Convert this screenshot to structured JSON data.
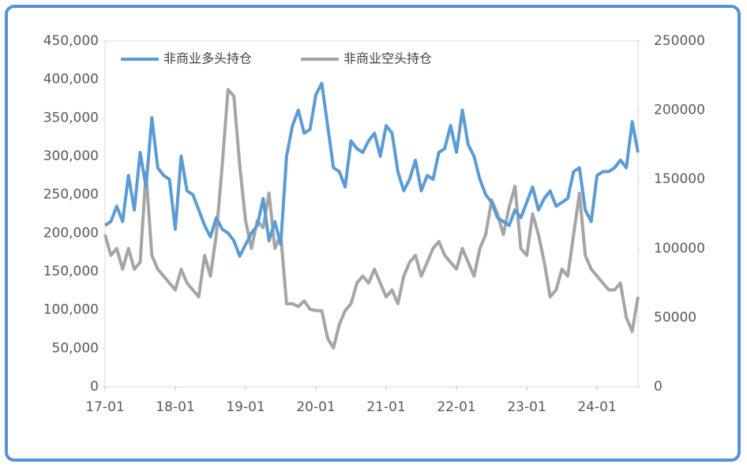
{
  "chart_data": {
    "type": "line",
    "x": [
      "17-01",
      "17-02",
      "17-03",
      "17-04",
      "17-05",
      "17-06",
      "17-07",
      "17-08",
      "17-09",
      "17-10",
      "17-11",
      "17-12",
      "18-01",
      "18-02",
      "18-03",
      "18-04",
      "18-05",
      "18-06",
      "18-07",
      "18-08",
      "18-09",
      "18-10",
      "18-11",
      "18-12",
      "19-01",
      "19-02",
      "19-03",
      "19-04",
      "19-05",
      "19-06",
      "19-07",
      "19-08",
      "19-09",
      "19-10",
      "19-11",
      "19-12",
      "20-01",
      "20-02",
      "20-03",
      "20-04",
      "20-05",
      "20-06",
      "20-07",
      "20-08",
      "20-09",
      "20-10",
      "20-11",
      "20-12",
      "21-01",
      "21-02",
      "21-03",
      "21-04",
      "21-05",
      "21-06",
      "21-07",
      "21-08",
      "21-09",
      "21-10",
      "21-11",
      "21-12",
      "22-01",
      "22-02",
      "22-03",
      "22-04",
      "22-05",
      "22-06",
      "22-07",
      "22-08",
      "22-09",
      "22-10",
      "22-11",
      "22-12",
      "23-01",
      "23-02",
      "23-03",
      "23-04",
      "23-05",
      "23-06",
      "23-07",
      "23-08",
      "23-09",
      "23-10",
      "23-11",
      "23-12",
      "24-01",
      "24-02",
      "24-03",
      "24-04",
      "24-05",
      "24-06",
      "24-07",
      "24-08"
    ],
    "xticks": [
      "17-01",
      "18-01",
      "19-01",
      "20-01",
      "21-01",
      "22-01",
      "23-01",
      "24-01"
    ],
    "series": [
      {
        "name": "非商业多头持仓",
        "color": "#5b9bd5",
        "axis": "y",
        "values": [
          210000,
          215000,
          235000,
          215000,
          275000,
          230000,
          305000,
          260000,
          350000,
          285000,
          275000,
          270000,
          205000,
          300000,
          255000,
          250000,
          230000,
          210000,
          195000,
          220000,
          205000,
          200000,
          190000,
          170000,
          185000,
          200000,
          210000,
          245000,
          190000,
          215000,
          185000,
          300000,
          340000,
          360000,
          330000,
          335000,
          380000,
          395000,
          340000,
          285000,
          280000,
          260000,
          320000,
          310000,
          305000,
          320000,
          330000,
          300000,
          340000,
          330000,
          280000,
          255000,
          270000,
          295000,
          255000,
          275000,
          270000,
          305000,
          310000,
          340000,
          305000,
          360000,
          315000,
          300000,
          270000,
          250000,
          240000,
          220000,
          215000,
          210000,
          230000,
          220000,
          240000,
          260000,
          230000,
          245000,
          255000,
          235000,
          240000,
          245000,
          280000,
          285000,
          230000,
          215000,
          275000,
          280000,
          280000,
          285000,
          295000,
          285000,
          345000,
          305000
        ]
      },
      {
        "name": "非商业空头持仓",
        "color": "#a5a5a5",
        "axis": "y2",
        "values": [
          110000,
          95000,
          100000,
          85000,
          100000,
          85000,
          90000,
          155000,
          95000,
          85000,
          80000,
          75000,
          70000,
          85000,
          75000,
          70000,
          65000,
          95000,
          80000,
          110000,
          160000,
          215000,
          210000,
          160000,
          120000,
          100000,
          120000,
          115000,
          140000,
          100000,
          110000,
          60000,
          60000,
          58000,
          62000,
          56000,
          55000,
          55000,
          35000,
          28000,
          45000,
          55000,
          60000,
          75000,
          80000,
          75000,
          85000,
          75000,
          65000,
          70000,
          60000,
          80000,
          90000,
          95000,
          80000,
          90000,
          100000,
          105000,
          95000,
          90000,
          85000,
          100000,
          90000,
          80000,
          100000,
          110000,
          135000,
          125000,
          110000,
          130000,
          145000,
          100000,
          95000,
          125000,
          110000,
          90000,
          65000,
          70000,
          85000,
          80000,
          110000,
          140000,
          95000,
          85000,
          80000,
          75000,
          70000,
          70000,
          75000,
          50000,
          40000,
          65000
        ]
      }
    ],
    "ylim": [
      0,
      450000
    ],
    "yticks": [
      0,
      {
        "value": 50000,
        "label": "50,000"
      },
      {
        "value": 100000,
        "label": "100,000"
      },
      {
        "value": 150000,
        "label": "150,000"
      },
      {
        "value": 200000,
        "label": "200,000"
      },
      {
        "value": 250000,
        "label": "250,000"
      },
      {
        "value": 300000,
        "label": "300,000"
      },
      {
        "value": 350000,
        "label": "350,000"
      },
      {
        "value": 400000,
        "label": "400,000"
      },
      {
        "value": 450000,
        "label": "450,000"
      }
    ],
    "y2lim": [
      0,
      250000
    ],
    "y2ticks": [
      0,
      50000,
      100000,
      150000,
      200000,
      250000
    ],
    "legend": "top-left",
    "grid": false
  }
}
